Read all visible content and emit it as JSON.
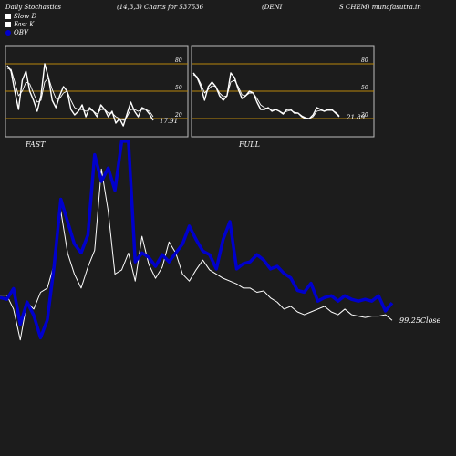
{
  "header": {
    "left": "Daily Stochastics",
    "params": "(14,3,3) Charts for 537536",
    "name_a": "(DENI",
    "name_b": "S CHEM) munafasutra.in"
  },
  "legend": [
    {
      "label": "Slow  D",
      "color": "#ffffff"
    },
    {
      "label": "Fast K",
      "color": "#ffffff"
    },
    {
      "label": "OBV",
      "color": "#0000cc"
    }
  ],
  "colors": {
    "background": "#1c1c1c",
    "panel_border": "#bbbbbb",
    "level_line": "#b8860b",
    "stoch_line": "#ffffff",
    "obv_line": "#0000cc",
    "price_line": "#ffffff"
  },
  "chart_data": [
    {
      "type": "line",
      "title": "FAST",
      "ylim": [
        0,
        100
      ],
      "yticks": [
        20,
        50,
        80
      ],
      "levels": [
        20,
        50,
        80
      ],
      "last_value_label": "17.91",
      "series": [
        {
          "name": "Fast K",
          "values": [
            78,
            72,
            50,
            30,
            62,
            72,
            50,
            40,
            28,
            45,
            80,
            65,
            40,
            32,
            45,
            55,
            50,
            30,
            24,
            28,
            35,
            22,
            32,
            28,
            22,
            35,
            30,
            22,
            28,
            15,
            20,
            12,
            25,
            38,
            28,
            22,
            32,
            30,
            25,
            18
          ]
        },
        {
          "name": "Slow  D",
          "values": [
            75,
            74,
            60,
            45,
            50,
            60,
            58,
            48,
            38,
            40,
            60,
            65,
            52,
            42,
            42,
            48,
            50,
            40,
            32,
            30,
            30,
            28,
            30,
            28,
            25,
            30,
            30,
            26,
            26,
            22,
            20,
            18,
            22,
            30,
            30,
            28,
            30,
            30,
            28,
            22
          ]
        }
      ]
    },
    {
      "type": "line",
      "title": "FULL",
      "ylim": [
        0,
        100
      ],
      "yticks": [
        20,
        50,
        80
      ],
      "levels": [
        20,
        50,
        80
      ],
      "last_value_label": "21.89",
      "series": [
        {
          "name": "Full K",
          "values": [
            70,
            65,
            55,
            40,
            55,
            60,
            55,
            45,
            40,
            45,
            70,
            65,
            52,
            42,
            45,
            50,
            48,
            38,
            30,
            30,
            32,
            28,
            30,
            28,
            25,
            30,
            30,
            26,
            26,
            22,
            20,
            20,
            24,
            32,
            30,
            28,
            30,
            30,
            26,
            22
          ]
        },
        {
          "name": "Full D",
          "values": [
            68,
            66,
            58,
            48,
            52,
            56,
            55,
            48,
            44,
            45,
            60,
            62,
            55,
            46,
            45,
            48,
            48,
            42,
            35,
            32,
            31,
            29,
            30,
            28,
            26,
            28,
            29,
            27,
            26,
            23,
            21,
            20,
            22,
            28,
            29,
            28,
            29,
            29,
            27,
            23
          ]
        }
      ]
    },
    {
      "type": "line",
      "title": "",
      "last_value_label": "99.25",
      "last_value_suffix": "Close",
      "series": [
        {
          "name": "OBV",
          "values": [
            180,
            178,
            190,
            150,
            175,
            160,
            135,
            155,
            215,
            290,
            265,
            240,
            230,
            250,
            340,
            310,
            325,
            300,
            355,
            355,
            220,
            230,
            225,
            215,
            228,
            220,
            230,
            240,
            260,
            245,
            232,
            228,
            212,
            245,
            265,
            212,
            218,
            220,
            228,
            222,
            212,
            215,
            207,
            202,
            188,
            186,
            196,
            176,
            180,
            182,
            176,
            182,
            178,
            176,
            178,
            176,
            182,
            165,
            174
          ]
        },
        {
          "name": "Price",
          "values": [
            150,
            150,
            140,
            118,
            145,
            140,
            152,
            155,
            172,
            210,
            180,
            165,
            155,
            170,
            182,
            240,
            210,
            165,
            168,
            180,
            160,
            192,
            172,
            162,
            170,
            188,
            180,
            165,
            160,
            168,
            175,
            168,
            165,
            162,
            160,
            158,
            155,
            155,
            152,
            153,
            148,
            145,
            140,
            142,
            138,
            136,
            138,
            140,
            142,
            138,
            136,
            140,
            136,
            135,
            134,
            135,
            135,
            136,
            132
          ]
        }
      ]
    }
  ]
}
